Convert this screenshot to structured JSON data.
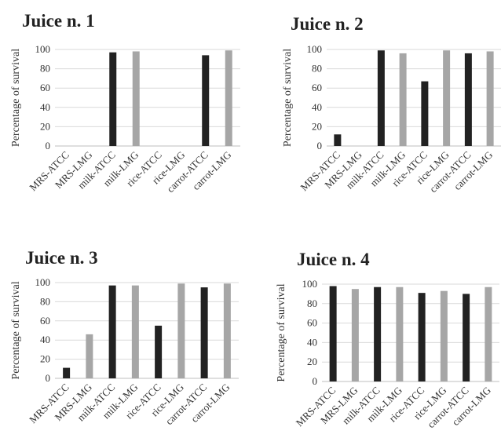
{
  "figure": {
    "colors": {
      "atcc": "#222222",
      "lmg": "#a6a6a6",
      "grid": "#d9d9d9",
      "axis": "#bfbfbf"
    }
  },
  "chart_data": [
    {
      "type": "bar",
      "title": "Juice n. 1",
      "ylabel": "Percentage of survival",
      "ylim": [
        0,
        100
      ],
      "yticks": [
        0,
        20,
        40,
        60,
        80,
        100
      ],
      "grid": true,
      "categories": [
        "MRS-ATCC",
        "MRS-LMG",
        "milk-ATCC",
        "milk-LMG",
        "rice-ATCC",
        "rice-LMG",
        "carrot-ATCC",
        "carrot-LMG"
      ],
      "values": [
        0,
        0,
        97,
        98,
        0,
        0,
        94,
        99
      ],
      "bar_colors": [
        "atcc",
        "lmg",
        "atcc",
        "lmg",
        "atcc",
        "lmg",
        "atcc",
        "lmg"
      ]
    },
    {
      "type": "bar",
      "title": "Juice n. 2",
      "ylabel": "Percentage of survival",
      "ylim": [
        0,
        100
      ],
      "yticks": [
        0,
        20,
        40,
        60,
        80,
        100
      ],
      "grid": true,
      "categories": [
        "MRS-ATCC",
        "MRS-LMG",
        "milk-ATCC",
        "milk-LMG",
        "rice-ATCC",
        "rice-LMG",
        "carrot-ATCC",
        "carrot-LMG"
      ],
      "values": [
        12,
        0,
        99,
        96,
        67,
        99,
        96,
        98
      ],
      "bar_colors": [
        "atcc",
        "lmg",
        "atcc",
        "lmg",
        "atcc",
        "lmg",
        "atcc",
        "lmg"
      ]
    },
    {
      "type": "bar",
      "title": "Juice n. 3",
      "ylabel": "Percentage of survival",
      "ylim": [
        0,
        100
      ],
      "yticks": [
        0,
        20,
        40,
        60,
        80,
        100
      ],
      "grid": true,
      "categories": [
        "MRS-ATCC",
        "MRS-LMG",
        "milk-ATCC",
        "milk-LMG",
        "rice-ATCC",
        "rice-LMG",
        "carrot-ATCC",
        "carrot-LMG"
      ],
      "values": [
        11,
        46,
        97,
        97,
        55,
        99,
        95,
        99
      ],
      "bar_colors": [
        "atcc",
        "lmg",
        "atcc",
        "lmg",
        "atcc",
        "lmg",
        "atcc",
        "lmg"
      ]
    },
    {
      "type": "bar",
      "title": "Juice n. 4",
      "ylabel": "Percentage of survival",
      "ylim": [
        0,
        100
      ],
      "yticks": [
        0,
        20,
        40,
        60,
        80,
        100
      ],
      "grid": true,
      "categories": [
        "MRS-ATCC",
        "MRS-LMG",
        "milk-ATCC",
        "milk-LMG",
        "rice-ATCC",
        "rice-LMG",
        "carrot-ATCC",
        "carrot-LMG"
      ],
      "values": [
        98,
        95,
        97,
        97,
        91,
        93,
        90,
        97
      ],
      "bar_colors": [
        "atcc",
        "lmg",
        "atcc",
        "lmg",
        "atcc",
        "lmg",
        "atcc",
        "lmg"
      ]
    }
  ]
}
